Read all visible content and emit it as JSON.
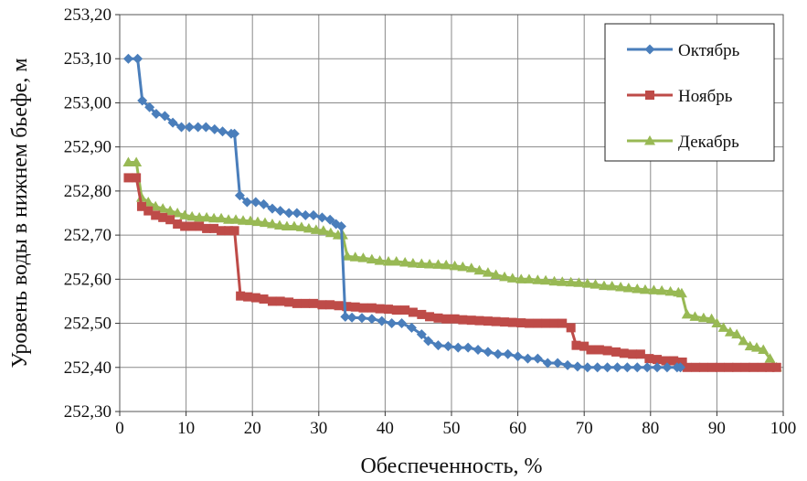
{
  "chart_data": {
    "type": "line",
    "title": "",
    "xlabel": "Обеспеченность, %",
    "ylabel": "Уровень воды в нижнем бьефе, м",
    "xlim": [
      0,
      100
    ],
    "ylim": [
      252.3,
      253.2
    ],
    "grid": true,
    "legend_position": "top-right",
    "x_ticks": [
      0,
      10,
      20,
      30,
      40,
      50,
      60,
      70,
      80,
      90,
      100
    ],
    "x_tick_labels": [
      "0",
      "10",
      "20",
      "30",
      "40",
      "50",
      "60",
      "70",
      "80",
      "90",
      "100"
    ],
    "y_ticks": [
      252.3,
      252.4,
      252.5,
      252.6,
      252.7,
      252.8,
      252.9,
      253.0,
      253.1,
      253.2
    ],
    "y_tick_labels": [
      "252,30",
      "252,40",
      "252,50",
      "252,60",
      "252,70",
      "252,80",
      "252,90",
      "253,00",
      "253,10",
      "253,20"
    ],
    "series": [
      {
        "name": "Октябрь",
        "color": "#4a7ebb",
        "marker": "diamond",
        "points": [
          [
            1.3,
            253.1
          ],
          [
            2.7,
            253.1
          ],
          [
            3.4,
            253.005
          ],
          [
            4.5,
            252.99
          ],
          [
            5.5,
            252.975
          ],
          [
            6.8,
            252.97
          ],
          [
            8.0,
            252.955
          ],
          [
            9.3,
            252.945
          ],
          [
            10.5,
            252.945
          ],
          [
            11.8,
            252.945
          ],
          [
            13.0,
            252.945
          ],
          [
            14.3,
            252.94
          ],
          [
            15.5,
            252.935
          ],
          [
            16.8,
            252.93
          ],
          [
            17.3,
            252.93
          ],
          [
            18.1,
            252.79
          ],
          [
            19.2,
            252.775
          ],
          [
            20.5,
            252.775
          ],
          [
            21.7,
            252.77
          ],
          [
            23.0,
            252.76
          ],
          [
            24.2,
            252.755
          ],
          [
            25.5,
            252.75
          ],
          [
            26.7,
            252.75
          ],
          [
            28.0,
            252.745
          ],
          [
            29.2,
            252.745
          ],
          [
            30.5,
            252.74
          ],
          [
            31.7,
            252.735
          ],
          [
            32.6,
            252.725
          ],
          [
            33.4,
            252.72
          ],
          [
            34.0,
            252.515
          ],
          [
            35.0,
            252.513
          ],
          [
            36.5,
            252.512
          ],
          [
            38.0,
            252.51
          ],
          [
            39.5,
            252.505
          ],
          [
            41.0,
            252.5
          ],
          [
            42.5,
            252.5
          ],
          [
            44.0,
            252.49
          ],
          [
            45.5,
            252.475
          ],
          [
            46.5,
            252.46
          ],
          [
            48.0,
            252.45
          ],
          [
            49.5,
            252.448
          ],
          [
            51.0,
            252.445
          ],
          [
            52.5,
            252.445
          ],
          [
            54.0,
            252.44
          ],
          [
            55.5,
            252.435
          ],
          [
            57.0,
            252.43
          ],
          [
            58.5,
            252.43
          ],
          [
            60.0,
            252.425
          ],
          [
            61.5,
            252.42
          ],
          [
            63.0,
            252.42
          ],
          [
            64.5,
            252.41
          ],
          [
            66.0,
            252.41
          ],
          [
            67.5,
            252.405
          ],
          [
            69.0,
            252.402
          ],
          [
            70.5,
            252.4
          ],
          [
            72.0,
            252.4
          ],
          [
            73.5,
            252.4
          ],
          [
            75.0,
            252.4
          ],
          [
            76.5,
            252.4
          ],
          [
            78.0,
            252.4
          ],
          [
            79.5,
            252.4
          ],
          [
            81.0,
            252.4
          ],
          [
            82.5,
            252.4
          ],
          [
            84.0,
            252.4
          ],
          [
            84.5,
            252.4
          ]
        ]
      },
      {
        "name": "Ноябрь",
        "color": "#be4b48",
        "marker": "square",
        "points": [
          [
            1.3,
            252.83
          ],
          [
            2.5,
            252.83
          ],
          [
            3.3,
            252.765
          ],
          [
            4.3,
            252.755
          ],
          [
            5.4,
            252.745
          ],
          [
            6.5,
            252.74
          ],
          [
            7.6,
            252.735
          ],
          [
            8.7,
            252.725
          ],
          [
            9.8,
            252.72
          ],
          [
            10.9,
            252.72
          ],
          [
            12.0,
            252.72
          ],
          [
            13.1,
            252.715
          ],
          [
            14.2,
            252.715
          ],
          [
            15.3,
            252.71
          ],
          [
            16.4,
            252.71
          ],
          [
            17.3,
            252.71
          ],
          [
            18.2,
            252.562
          ],
          [
            19.3,
            252.56
          ],
          [
            20.5,
            252.558
          ],
          [
            21.7,
            252.555
          ],
          [
            23.0,
            252.55
          ],
          [
            24.2,
            252.55
          ],
          [
            25.5,
            252.548
          ],
          [
            26.7,
            252.545
          ],
          [
            28.0,
            252.545
          ],
          [
            29.2,
            252.545
          ],
          [
            30.5,
            252.542
          ],
          [
            31.7,
            252.542
          ],
          [
            33.0,
            252.54
          ],
          [
            34.2,
            252.538
          ],
          [
            35.5,
            252.537
          ],
          [
            36.7,
            252.535
          ],
          [
            38.0,
            252.535
          ],
          [
            39.2,
            252.533
          ],
          [
            40.5,
            252.532
          ],
          [
            41.7,
            252.53
          ],
          [
            43.0,
            252.53
          ],
          [
            44.2,
            252.525
          ],
          [
            45.5,
            252.52
          ],
          [
            46.7,
            252.515
          ],
          [
            48.0,
            252.512
          ],
          [
            49.2,
            252.51
          ],
          [
            50.5,
            252.51
          ],
          [
            51.7,
            252.508
          ],
          [
            53.0,
            252.507
          ],
          [
            54.2,
            252.506
          ],
          [
            55.5,
            252.505
          ],
          [
            56.7,
            252.504
          ],
          [
            58.0,
            252.503
          ],
          [
            59.2,
            252.502
          ],
          [
            60.5,
            252.501
          ],
          [
            61.7,
            252.5
          ],
          [
            63.0,
            252.5
          ],
          [
            64.2,
            252.5
          ],
          [
            65.5,
            252.5
          ],
          [
            66.7,
            252.5
          ],
          [
            68.0,
            252.49
          ],
          [
            68.8,
            252.45
          ],
          [
            70.0,
            252.448
          ],
          [
            71.0,
            252.44
          ],
          [
            72.3,
            252.44
          ],
          [
            73.5,
            252.438
          ],
          [
            74.8,
            252.435
          ],
          [
            76.0,
            252.432
          ],
          [
            77.3,
            252.43
          ],
          [
            78.5,
            252.43
          ],
          [
            79.8,
            252.42
          ],
          [
            81.0,
            252.418
          ],
          [
            82.3,
            252.415
          ],
          [
            83.5,
            252.415
          ],
          [
            84.8,
            252.412
          ],
          [
            85.5,
            252.4
          ],
          [
            86.8,
            252.4
          ],
          [
            88.0,
            252.4
          ],
          [
            89.3,
            252.4
          ],
          [
            90.5,
            252.4
          ],
          [
            91.8,
            252.4
          ],
          [
            93.0,
            252.4
          ],
          [
            94.3,
            252.4
          ],
          [
            95.5,
            252.4
          ],
          [
            96.8,
            252.4
          ],
          [
            98.0,
            252.4
          ],
          [
            99.0,
            252.4
          ]
        ]
      },
      {
        "name": "Декабрь",
        "color": "#98b954",
        "marker": "triangle",
        "points": [
          [
            1.3,
            252.865
          ],
          [
            2.5,
            252.865
          ],
          [
            3.3,
            252.785
          ],
          [
            4.3,
            252.775
          ],
          [
            5.4,
            252.765
          ],
          [
            6.5,
            252.76
          ],
          [
            7.6,
            252.755
          ],
          [
            8.7,
            252.75
          ],
          [
            9.8,
            252.745
          ],
          [
            10.9,
            252.742
          ],
          [
            12.0,
            252.74
          ],
          [
            13.1,
            252.74
          ],
          [
            14.2,
            252.738
          ],
          [
            15.3,
            252.738
          ],
          [
            16.4,
            252.735
          ],
          [
            17.5,
            252.735
          ],
          [
            18.6,
            252.733
          ],
          [
            19.7,
            252.732
          ],
          [
            20.8,
            252.73
          ],
          [
            21.9,
            252.728
          ],
          [
            23.0,
            252.725
          ],
          [
            24.1,
            252.722
          ],
          [
            25.2,
            252.72
          ],
          [
            26.3,
            252.72
          ],
          [
            27.4,
            252.718
          ],
          [
            28.5,
            252.715
          ],
          [
            29.6,
            252.712
          ],
          [
            30.7,
            252.71
          ],
          [
            31.8,
            252.705
          ],
          [
            32.9,
            252.7
          ],
          [
            33.6,
            252.7
          ],
          [
            34.3,
            252.652
          ],
          [
            35.5,
            252.65
          ],
          [
            36.7,
            252.648
          ],
          [
            38.0,
            252.645
          ],
          [
            39.2,
            252.642
          ],
          [
            40.5,
            252.64
          ],
          [
            41.7,
            252.64
          ],
          [
            43.0,
            252.638
          ],
          [
            44.2,
            252.636
          ],
          [
            45.5,
            252.635
          ],
          [
            46.7,
            252.634
          ],
          [
            48.0,
            252.633
          ],
          [
            49.2,
            252.632
          ],
          [
            50.5,
            252.63
          ],
          [
            51.7,
            252.628
          ],
          [
            53.0,
            252.625
          ],
          [
            54.2,
            252.62
          ],
          [
            55.5,
            252.615
          ],
          [
            56.7,
            252.61
          ],
          [
            58.0,
            252.605
          ],
          [
            59.2,
            252.602
          ],
          [
            60.5,
            252.6
          ],
          [
            61.7,
            252.6
          ],
          [
            63.0,
            252.598
          ],
          [
            64.2,
            252.597
          ],
          [
            65.5,
            252.595
          ],
          [
            66.7,
            252.594
          ],
          [
            68.0,
            252.593
          ],
          [
            69.2,
            252.592
          ],
          [
            70.5,
            252.59
          ],
          [
            71.7,
            252.588
          ],
          [
            73.0,
            252.585
          ],
          [
            74.2,
            252.584
          ],
          [
            75.5,
            252.582
          ],
          [
            76.7,
            252.58
          ],
          [
            78.0,
            252.578
          ],
          [
            79.2,
            252.576
          ],
          [
            80.5,
            252.575
          ],
          [
            81.7,
            252.574
          ],
          [
            83.0,
            252.572
          ],
          [
            84.2,
            252.57
          ],
          [
            84.7,
            252.568
          ],
          [
            85.5,
            252.52
          ],
          [
            86.7,
            252.515
          ],
          [
            88.0,
            252.512
          ],
          [
            89.2,
            252.51
          ],
          [
            90.0,
            252.5
          ],
          [
            91.0,
            252.49
          ],
          [
            92.0,
            252.48
          ],
          [
            93.0,
            252.475
          ],
          [
            94.0,
            252.46
          ],
          [
            95.0,
            252.448
          ],
          [
            96.0,
            252.445
          ],
          [
            97.0,
            252.44
          ],
          [
            98.0,
            252.42
          ],
          [
            99.0,
            252.4
          ]
        ]
      }
    ]
  }
}
